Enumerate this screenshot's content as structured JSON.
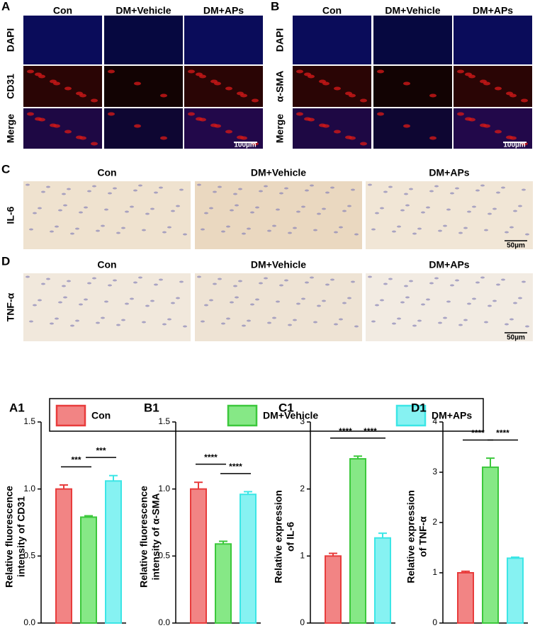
{
  "panel_A": {
    "label": "A",
    "columns": [
      "Con",
      "DM+Vehicle",
      "DM+APs"
    ],
    "rows": [
      "DAPI",
      "CD31",
      "Merge"
    ],
    "scale_bar": "100µm"
  },
  "panel_B": {
    "label": "B",
    "columns": [
      "Con",
      "DM+Vehicle",
      "DM+APs"
    ],
    "rows": [
      "DAPI",
      "α-SMA",
      "Merge"
    ],
    "scale_bar": "100µm"
  },
  "panel_C": {
    "label": "C",
    "columns": [
      "Con",
      "DM+Vehicle",
      "DM+APs"
    ],
    "row": "IL-6",
    "scale_bar": "50µm"
  },
  "panel_D": {
    "label": "D",
    "columns": [
      "Con",
      "DM+Vehicle",
      "DM+APs"
    ],
    "row": "TNF-α",
    "scale_bar": "50µm"
  },
  "legend": {
    "labels": [
      "Con",
      "DM+Vehicle",
      "DM+APs"
    ],
    "colors": [
      "#f28484",
      "#86e886",
      "#86f2f2"
    ],
    "edge_colors": [
      "#e83c3c",
      "#3cc83c",
      "#3ce6e6"
    ]
  },
  "chart_data": [
    {
      "type": "bar",
      "panel": "A1",
      "ylabel": [
        "Relative fluorescence",
        "intensity of CD31"
      ],
      "values": [
        1.0,
        0.79,
        1.06
      ],
      "errors": [
        0.03,
        0.01,
        0.04
      ],
      "ylim": [
        0,
        1.5
      ],
      "yticks": [
        {
          "value": 0,
          "label": "0.0"
        },
        0.5,
        {
          "value": 1,
          "label": "1.0"
        },
        1.5
      ],
      "comparisons": [
        {
          "groups": [
            "Con",
            "DM+Vehicle"
          ],
          "label": "***"
        },
        {
          "groups": [
            "DM+Vehicle",
            "DM+APs"
          ],
          "label": "***"
        }
      ]
    },
    {
      "type": "bar",
      "panel": "B1",
      "ylabel": [
        "Relative fluorescence",
        "intensity of α-SMA"
      ],
      "values": [
        1.0,
        0.59,
        0.96
      ],
      "errors": [
        0.05,
        0.02,
        0.02
      ],
      "ylim": [
        0,
        1.5
      ],
      "yticks": [
        {
          "value": 0,
          "label": "0.0"
        },
        0.5,
        {
          "value": 1,
          "label": "1.0"
        },
        1.5
      ],
      "comparisons": [
        {
          "groups": [
            "Con",
            "DM+Vehicle"
          ],
          "label": "****"
        },
        {
          "groups": [
            "DM+Vehicle",
            "DM+APs"
          ],
          "label": "****"
        }
      ]
    },
    {
      "type": "bar",
      "panel": "C1",
      "ylabel": [
        "Relative expression",
        "of IL-6"
      ],
      "values": [
        1.0,
        2.45,
        1.27
      ],
      "errors": [
        0.04,
        0.04,
        0.07
      ],
      "ylim": [
        0,
        3
      ],
      "yticks": [
        0,
        1,
        2,
        3
      ],
      "comparisons": [
        {
          "groups": [
            "Con",
            "DM+Vehicle"
          ],
          "label": "****"
        },
        {
          "groups": [
            "DM+Vehicle",
            "DM+APs"
          ],
          "label": "****"
        }
      ]
    },
    {
      "type": "bar",
      "panel": "D1",
      "ylabel": [
        "Relative expression",
        "of TNF-α"
      ],
      "values": [
        1.0,
        3.1,
        1.29
      ],
      "errors": [
        0.03,
        0.18,
        0.02
      ],
      "ylim": [
        0,
        4
      ],
      "yticks": [
        0,
        1,
        2,
        3,
        4
      ],
      "comparisons": [
        {
          "groups": [
            "Con",
            "DM+Vehicle"
          ],
          "label": "****"
        },
        {
          "groups": [
            "DM+Vehicle",
            "DM+APs"
          ],
          "label": "****"
        }
      ]
    }
  ]
}
